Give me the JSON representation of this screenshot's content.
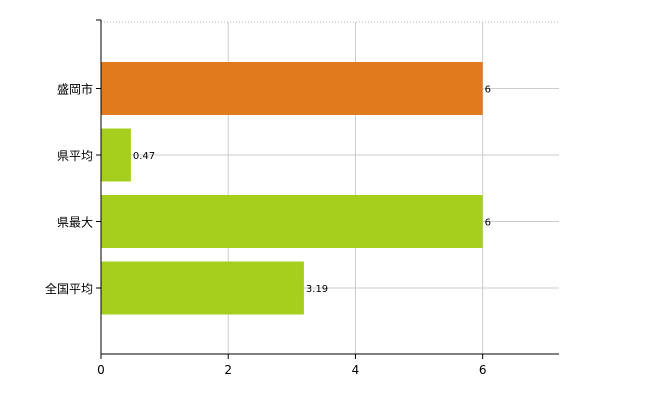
{
  "chart_data": {
    "type": "bar",
    "orientation": "horizontal",
    "categories": [
      "盛岡市",
      "県平均",
      "県最大",
      "全国平均"
    ],
    "values": [
      6,
      0.47,
      6,
      3.19
    ],
    "value_labels": [
      "6",
      "0.47",
      "6",
      "3.19"
    ],
    "bar_colors": [
      "#e07b1d",
      "#a6cf1d",
      "#a6cf1d",
      "#a6cf1d"
    ],
    "xlim": [
      0,
      7.2
    ],
    "xticks": [
      0,
      2,
      4,
      6
    ],
    "xtick_labels": [
      "0",
      "2",
      "4",
      "6"
    ],
    "grid": true,
    "legend": "none",
    "title": "",
    "xlabel": "",
    "ylabel": ""
  }
}
